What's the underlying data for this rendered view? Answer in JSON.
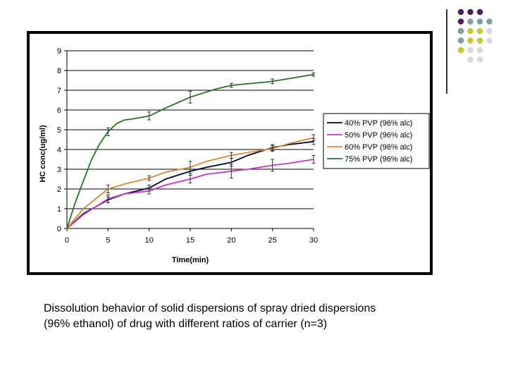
{
  "slide": {
    "caption_line1": "Dissolution behavior of solid dispersions of spray dried dispersions",
    "caption_line2": "(96% ethanol) of drug with different ratios of carrier (n=3)",
    "dot_colors": {
      "purple": "#4a2060",
      "teal": "#7f9fa0",
      "olive": "#c8c82a",
      "light": "#d8d8e4"
    },
    "dot_grid": [
      [
        "purple",
        "purple",
        "purple",
        null
      ],
      [
        "purple",
        "teal",
        "teal",
        "teal"
      ],
      [
        "teal",
        "olive",
        "olive",
        "light"
      ],
      [
        "teal",
        "olive",
        "olive",
        "light"
      ],
      [
        "olive",
        "light",
        "light",
        null
      ],
      [
        null,
        "light",
        "light",
        null
      ]
    ]
  },
  "chart_data": {
    "type": "line",
    "title": "",
    "xlabel": "Time(min)",
    "ylabel": "HC conc(ug/ml)",
    "xlim": [
      0,
      30
    ],
    "ylim": [
      0,
      9
    ],
    "xticks": [
      0,
      5,
      10,
      15,
      20,
      25,
      30
    ],
    "yticks": [
      0,
      1,
      2,
      3,
      4,
      5,
      6,
      7,
      8,
      9
    ],
    "grid": "horizontal",
    "legend_position": "right",
    "series": [
      {
        "name": "40% PVP (96% alc)",
        "color": "#000033",
        "x": [
          0,
          2,
          5,
          7,
          10,
          12,
          15,
          17,
          20,
          22,
          25,
          27,
          30
        ],
        "y": [
          0,
          0.75,
          1.45,
          1.75,
          2.05,
          2.5,
          2.9,
          3.1,
          3.35,
          3.7,
          4.1,
          4.25,
          4.4
        ],
        "errors": [
          null,
          null,
          0.15,
          null,
          0.15,
          null,
          0.2,
          null,
          0.2,
          null,
          0.15,
          null,
          0.15
        ]
      },
      {
        "name": "50% PVP (96% alc)",
        "color": "#cc33cc",
        "x": [
          0,
          2,
          5,
          7,
          10,
          12,
          15,
          17,
          20,
          22,
          25,
          27,
          30
        ],
        "y": [
          0,
          0.7,
          1.5,
          1.75,
          1.9,
          2.2,
          2.5,
          2.75,
          2.9,
          3.0,
          3.2,
          3.3,
          3.5
        ],
        "errors": [
          null,
          null,
          0.2,
          null,
          0.15,
          null,
          0.2,
          null,
          0.35,
          null,
          0.3,
          null,
          0.2
        ]
      },
      {
        "name": "60% PVP (96% alc)",
        "color": "#dd8833",
        "x": [
          0,
          2,
          5,
          7,
          10,
          12,
          15,
          17,
          20,
          22,
          25,
          27,
          30
        ],
        "y": [
          0,
          1.0,
          2.0,
          2.25,
          2.55,
          2.85,
          3.1,
          3.4,
          3.7,
          3.85,
          4.05,
          4.3,
          4.6
        ],
        "errors": [
          null,
          null,
          0.2,
          null,
          0.12,
          null,
          0.3,
          null,
          0.15,
          null,
          0.15,
          null,
          0.15
        ]
      },
      {
        "name": "75% PVP (96% alc)",
        "color": "#227722",
        "x": [
          0,
          1,
          2,
          3,
          4,
          5,
          6,
          7,
          8,
          10,
          12,
          15,
          18,
          20,
          25,
          30
        ],
        "y": [
          0,
          1.3,
          2.4,
          3.5,
          4.3,
          4.9,
          5.3,
          5.5,
          5.55,
          5.7,
          6.1,
          6.65,
          7.05,
          7.25,
          7.45,
          7.8
        ],
        "errors": [
          null,
          null,
          null,
          null,
          null,
          0.2,
          null,
          null,
          null,
          0.2,
          null,
          0.3,
          null,
          0.1,
          0.12,
          0.08
        ]
      }
    ]
  }
}
